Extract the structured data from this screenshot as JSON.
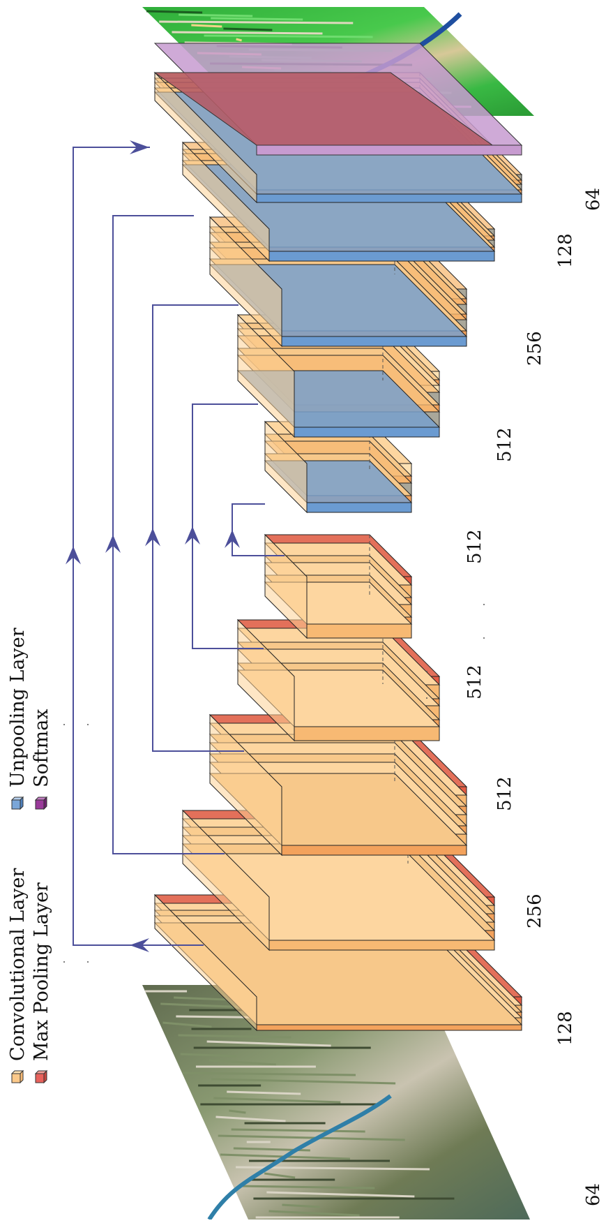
{
  "legend": {
    "items": [
      {
        "label": "Convolutional Layer",
        "icon": "conv-layer-icon",
        "color": "#fcc98a"
      },
      {
        "label": "Max Pooling Layer",
        "icon": "maxpool-layer-icon",
        "color": "#e8625c"
      },
      {
        "label": "Unpooling Layer",
        "icon": "unpool-layer-icon",
        "color": "#7aa6d8"
      },
      {
        "label": "Softmax",
        "icon": "softmax-layer-icon",
        "color": "#9a3a9a"
      }
    ]
  },
  "encoder": {
    "blocks": [
      {
        "channels": "64"
      },
      {
        "channels": "128"
      },
      {
        "channels": "256"
      },
      {
        "channels": "512"
      },
      {
        "channels": "512"
      }
    ]
  },
  "decoder": {
    "blocks": [
      {
        "channels": "512"
      },
      {
        "channels": "512"
      },
      {
        "channels": "256"
      },
      {
        "channels": "128"
      },
      {
        "channels": "64"
      }
    ]
  },
  "images": {
    "input": "satellite-input-image",
    "output": "segmentation-output-map"
  },
  "colors": {
    "conv": "#fde2b4",
    "conv_dark": "#f7b973",
    "pool": "#e06048",
    "unpool": "#6b9bd1",
    "softmax": "#c79bd0",
    "connector": "#4c4f9a",
    "output_red": "#b45a64"
  }
}
